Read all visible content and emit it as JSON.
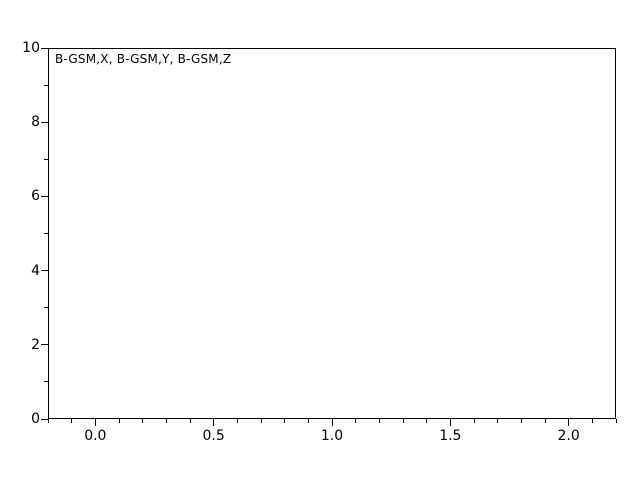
{
  "chart_data": {
    "type": "line",
    "title": "",
    "annotation": "B-GSM,X, B-GSM,Y, B-GSM,Z",
    "series": [],
    "xlabel": "",
    "ylabel": "",
    "xlim": [
      -0.2,
      2.2
    ],
    "ylim": [
      0,
      10
    ],
    "x_major_ticks": [
      0.0,
      0.5,
      1.0,
      1.5,
      2.0
    ],
    "x_major_labels": [
      "0.0",
      "0.5",
      "1.0",
      "1.5",
      "2.0"
    ],
    "x_minor_step": 0.1,
    "y_major_ticks": [
      0,
      2,
      4,
      6,
      8,
      10
    ],
    "y_major_labels": [
      "0",
      "2",
      "4",
      "6",
      "8",
      "10"
    ],
    "y_minor_step": 1,
    "grid": false,
    "legend_position": "none",
    "axis_color": "#000000",
    "background_color": "#ffffff"
  }
}
